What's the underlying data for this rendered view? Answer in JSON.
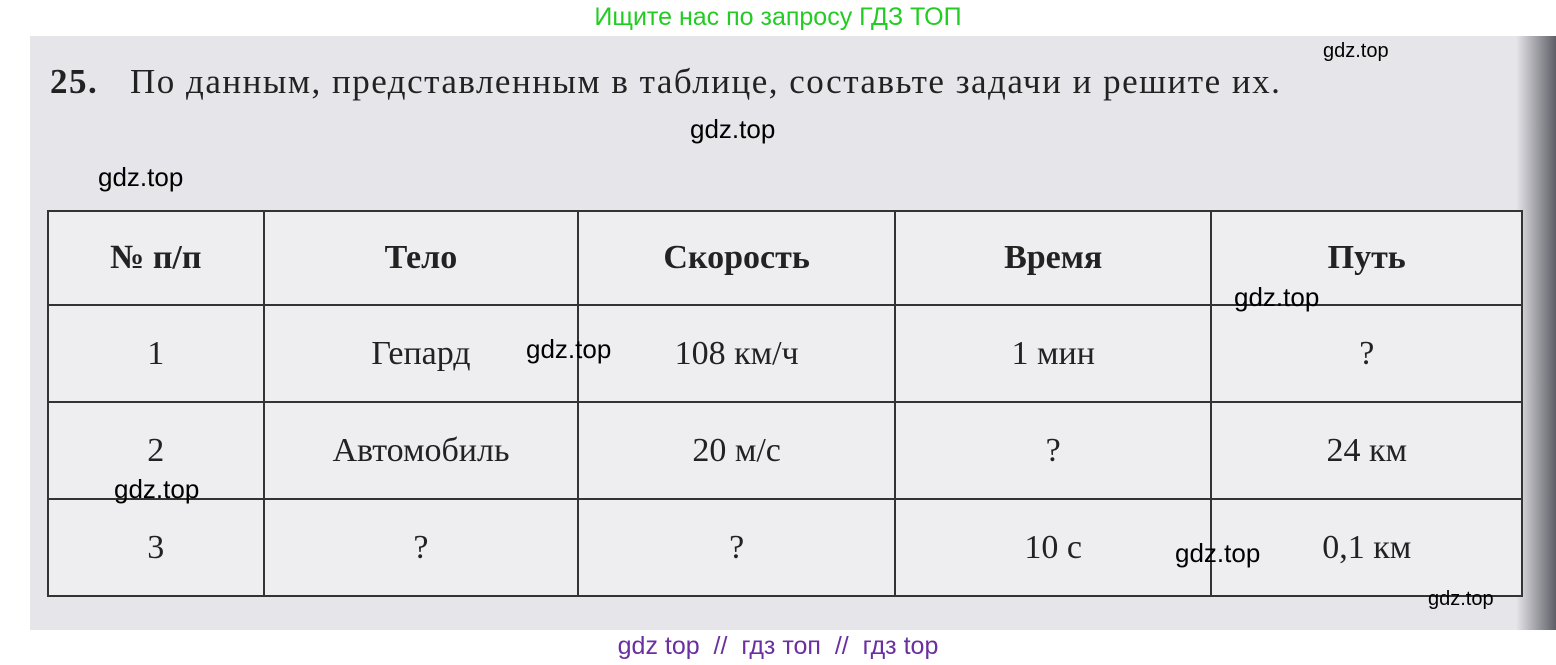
{
  "header_watermark": "Ищите нас по запросу ГДЗ ТОП",
  "problem": {
    "number": "25.",
    "text": "По данным, представленным в таблице, составьте задачи и решите их."
  },
  "table": {
    "headers": [
      "№ п/п",
      "Тело",
      "Скорость",
      "Время",
      "Путь"
    ],
    "rows": [
      [
        "1",
        "Гепард",
        "108 км/ч",
        "1 мин",
        "?"
      ],
      [
        "2",
        "Автомобиль",
        "20 м/с",
        "?",
        "24 км"
      ],
      [
        "3",
        "?",
        "?",
        "10 с",
        "0,1 км"
      ]
    ]
  },
  "watermarks": [
    "gdz.top",
    "gdz.top",
    "gdz.top",
    "gdz.top",
    "gdz.top",
    "gdz.top",
    "gdz.top",
    "gdz.top"
  ],
  "footer_watermark": "gdz top  //  гдз топ  //  гдз top",
  "colors": {
    "header_watermark": "#22cc22",
    "footer_watermark": "#6a2fa0"
  }
}
